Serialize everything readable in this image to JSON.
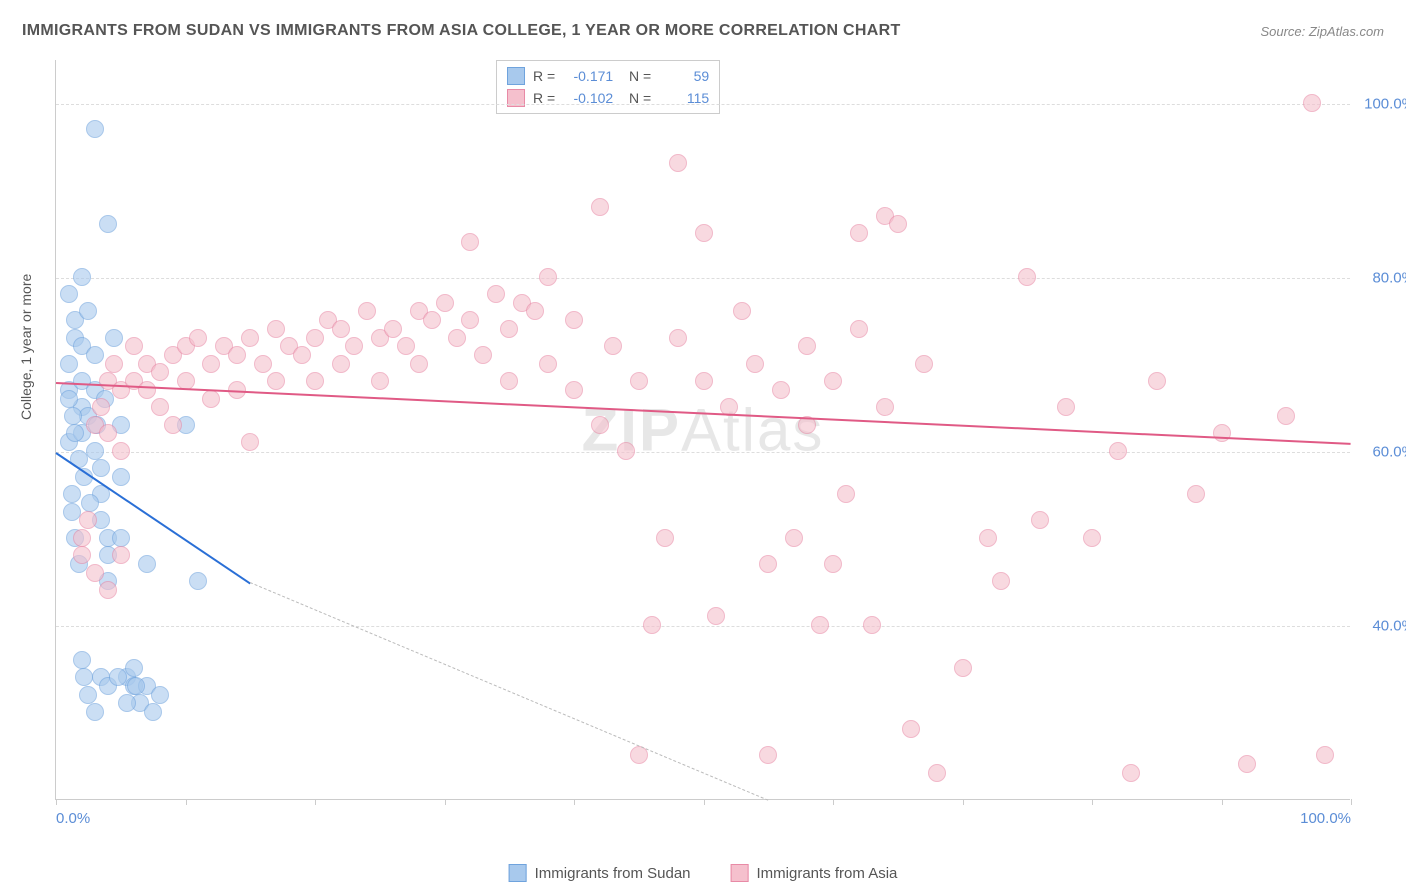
{
  "title": "IMMIGRANTS FROM SUDAN VS IMMIGRANTS FROM ASIA COLLEGE, 1 YEAR OR MORE CORRELATION CHART",
  "source": "Source: ZipAtlas.com",
  "watermark_bold": "ZIP",
  "watermark_light": "Atlas",
  "y_axis_label": "College, 1 year or more",
  "chart": {
    "type": "scatter",
    "xlim": [
      0,
      100
    ],
    "ylim": [
      20,
      105
    ],
    "y_ticks": [
      40,
      60,
      80,
      100
    ],
    "y_tick_labels": [
      "40.0%",
      "60.0%",
      "80.0%",
      "100.0%"
    ],
    "x_ticks": [
      0,
      10,
      20,
      30,
      40,
      50,
      60,
      70,
      80,
      90,
      100
    ],
    "x_tick_labels_shown": {
      "0": "0.0%",
      "100": "100.0%"
    },
    "grid_color": "#dddddd",
    "background_color": "#ffffff",
    "axis_color": "#cccccc",
    "marker_radius": 9,
    "marker_opacity": 0.6,
    "series": [
      {
        "name": "Immigrants from Sudan",
        "color_fill": "#a8c9ed",
        "color_stroke": "#6fa3dd",
        "R": "-0.171",
        "N": "59",
        "trend": {
          "x1": 0,
          "y1": 60,
          "x2": 15,
          "y2": 45,
          "color": "#2a6fd6",
          "width": 2,
          "dash_x1": 15,
          "dash_y1": 45,
          "dash_x2": 55,
          "dash_y2": 20
        },
        "points": [
          [
            1,
            61
          ],
          [
            1,
            67
          ],
          [
            1,
            70
          ],
          [
            1.5,
            73
          ],
          [
            1.5,
            75
          ],
          [
            2,
            72
          ],
          [
            2,
            68
          ],
          [
            2,
            65
          ],
          [
            2,
            62
          ],
          [
            2.5,
            76
          ],
          [
            2.5,
            64
          ],
          [
            3,
            71
          ],
          [
            3,
            67
          ],
          [
            3,
            60
          ],
          [
            3.5,
            58
          ],
          [
            3.5,
            55
          ],
          [
            3.5,
            52
          ],
          [
            4,
            50
          ],
          [
            4,
            48
          ],
          [
            4,
            45
          ],
          [
            4.5,
            73
          ],
          [
            5,
            63
          ],
          [
            5,
            57
          ],
          [
            5,
            50
          ],
          [
            5.5,
            34
          ],
          [
            6,
            35
          ],
          [
            6,
            33
          ],
          [
            6.5,
            31
          ],
          [
            7,
            33
          ],
          [
            7,
            47
          ],
          [
            7.5,
            30
          ],
          [
            8,
            32
          ],
          [
            3,
            97
          ],
          [
            4,
            86
          ],
          [
            1,
            78
          ],
          [
            2,
            80
          ],
          [
            1.2,
            55
          ],
          [
            1.2,
            53
          ],
          [
            1.5,
            50
          ],
          [
            1.8,
            47
          ],
          [
            10,
            63
          ],
          [
            11,
            45
          ],
          [
            2,
            36
          ],
          [
            2.2,
            34
          ],
          [
            2.5,
            32
          ],
          [
            3,
            30
          ],
          [
            3.5,
            34
          ],
          [
            4,
            33
          ],
          [
            4.8,
            34
          ],
          [
            5.5,
            31
          ],
          [
            6.2,
            33
          ],
          [
            1.5,
            62
          ],
          [
            1.8,
            59
          ],
          [
            2.2,
            57
          ],
          [
            2.6,
            54
          ],
          [
            3.2,
            63
          ],
          [
            3.8,
            66
          ],
          [
            1,
            66
          ],
          [
            1.3,
            64
          ]
        ]
      },
      {
        "name": "Immigrants from Asia",
        "color_fill": "#f5c0cd",
        "color_stroke": "#e88aa6",
        "R": "-0.102",
        "N": "115",
        "trend": {
          "x1": 0,
          "y1": 68,
          "x2": 100,
          "y2": 61,
          "color": "#e05a85",
          "width": 2
        },
        "points": [
          [
            2,
            48
          ],
          [
            2,
            50
          ],
          [
            2.5,
            52
          ],
          [
            3,
            63
          ],
          [
            3.5,
            65
          ],
          [
            4,
            68
          ],
          [
            4,
            62
          ],
          [
            4.5,
            70
          ],
          [
            5,
            67
          ],
          [
            5,
            60
          ],
          [
            6,
            68
          ],
          [
            6,
            72
          ],
          [
            7,
            67
          ],
          [
            7,
            70
          ],
          [
            8,
            65
          ],
          [
            8,
            69
          ],
          [
            9,
            71
          ],
          [
            9,
            63
          ],
          [
            10,
            72
          ],
          [
            10,
            68
          ],
          [
            11,
            73
          ],
          [
            12,
            70
          ],
          [
            12,
            66
          ],
          [
            13,
            72
          ],
          [
            14,
            71
          ],
          [
            14,
            67
          ],
          [
            15,
            73
          ],
          [
            15,
            61
          ],
          [
            16,
            70
          ],
          [
            17,
            74
          ],
          [
            17,
            68
          ],
          [
            18,
            72
          ],
          [
            19,
            71
          ],
          [
            20,
            73
          ],
          [
            20,
            68
          ],
          [
            21,
            75
          ],
          [
            22,
            74
          ],
          [
            22,
            70
          ],
          [
            23,
            72
          ],
          [
            24,
            76
          ],
          [
            25,
            73
          ],
          [
            25,
            68
          ],
          [
            26,
            74
          ],
          [
            27,
            72
          ],
          [
            28,
            76
          ],
          [
            28,
            70
          ],
          [
            29,
            75
          ],
          [
            30,
            77
          ],
          [
            31,
            73
          ],
          [
            32,
            84
          ],
          [
            32,
            75
          ],
          [
            33,
            71
          ],
          [
            34,
            78
          ],
          [
            35,
            74
          ],
          [
            35,
            68
          ],
          [
            36,
            77
          ],
          [
            37,
            76
          ],
          [
            38,
            70
          ],
          [
            38,
            80
          ],
          [
            40,
            75
          ],
          [
            40,
            67
          ],
          [
            42,
            88
          ],
          [
            42,
            63
          ],
          [
            43,
            72
          ],
          [
            44,
            60
          ],
          [
            45,
            25
          ],
          [
            45,
            68
          ],
          [
            46,
            40
          ],
          [
            47,
            50
          ],
          [
            48,
            73
          ],
          [
            48,
            93
          ],
          [
            50,
            68
          ],
          [
            50,
            85
          ],
          [
            51,
            41
          ],
          [
            52,
            65
          ],
          [
            53,
            76
          ],
          [
            54,
            70
          ],
          [
            55,
            25
          ],
          [
            55,
            47
          ],
          [
            56,
            67
          ],
          [
            57,
            50
          ],
          [
            58,
            72
          ],
          [
            58,
            63
          ],
          [
            59,
            40
          ],
          [
            60,
            47
          ],
          [
            60,
            68
          ],
          [
            61,
            55
          ],
          [
            62,
            74
          ],
          [
            62,
            85
          ],
          [
            63,
            40
          ],
          [
            64,
            87
          ],
          [
            64,
            65
          ],
          [
            65,
            86
          ],
          [
            66,
            28
          ],
          [
            67,
            70
          ],
          [
            68,
            23
          ],
          [
            70,
            35
          ],
          [
            72,
            50
          ],
          [
            73,
            45
          ],
          [
            75,
            80
          ],
          [
            76,
            52
          ],
          [
            78,
            65
          ],
          [
            80,
            50
          ],
          [
            82,
            60
          ],
          [
            83,
            23
          ],
          [
            85,
            68
          ],
          [
            88,
            55
          ],
          [
            90,
            62
          ],
          [
            92,
            24
          ],
          [
            95,
            64
          ],
          [
            97,
            100
          ],
          [
            98,
            25
          ],
          [
            3,
            46
          ],
          [
            4,
            44
          ],
          [
            5,
            48
          ]
        ]
      }
    ]
  },
  "legend_bottom": [
    {
      "label": "Immigrants from Sudan",
      "fill": "#a8c9ed",
      "stroke": "#6fa3dd"
    },
    {
      "label": "Immigrants from Asia",
      "fill": "#f5c0cd",
      "stroke": "#e88aa6"
    }
  ]
}
